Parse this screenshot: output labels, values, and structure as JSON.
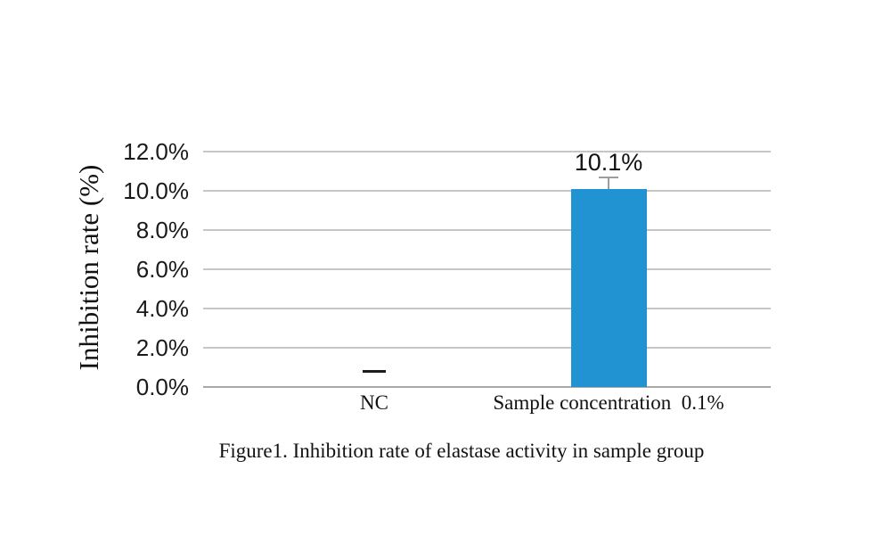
{
  "chart_data": {
    "type": "bar",
    "title": "",
    "ylabel": "Inhibition rate (%)",
    "xlabel": "",
    "categories": [
      "NC",
      "Sample concentration  0.1%"
    ],
    "values": [
      0,
      10.1
    ],
    "bars": [
      {
        "category": "NC",
        "value": 0,
        "marker": "dash",
        "marker_value": 0.8,
        "label": ""
      },
      {
        "category": "Sample concentration  0.1%",
        "value": 10.1,
        "label": "10.1%",
        "error_plus": 0.55
      }
    ],
    "ylim": [
      0,
      12
    ],
    "yticks": [
      {
        "value": 0,
        "label": "0.0%"
      },
      {
        "value": 2,
        "label": "2.0%"
      },
      {
        "value": 4,
        "label": "4.0%"
      },
      {
        "value": 6,
        "label": "6.0%"
      },
      {
        "value": 8,
        "label": "8.0%"
      },
      {
        "value": 10,
        "label": "10.0%"
      },
      {
        "value": 12,
        "label": "12.0%"
      }
    ],
    "grid": true,
    "legend": false,
    "colors": {
      "bar": "#2193d3",
      "gridline": "#c6c6c6",
      "axis": "#a9a9a9",
      "error_bar": "#9d9d9d",
      "nc_dash": "#1c1c1c",
      "text": "#111111"
    }
  },
  "caption": "Figure1. Inhibition rate of elastase activity in sample group"
}
